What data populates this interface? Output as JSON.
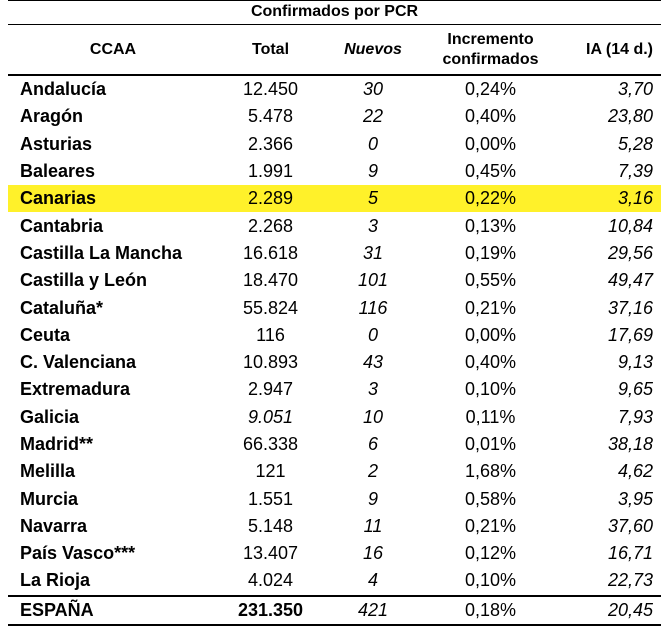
{
  "title": "Confirmados por PCR",
  "headers": {
    "ccaa": "CCAA",
    "total": "Total",
    "nuevos": "Nuevos",
    "incremento_line1": "Incremento",
    "incremento_line2": "confirmados",
    "ia": "IA (14 d.)"
  },
  "rows": [
    {
      "name": "Andalucía",
      "total": "12.450",
      "nuevos": "30",
      "incremento": "0,24%",
      "ia": "3,70"
    },
    {
      "name": "Aragón",
      "total": "5.478",
      "nuevos": "22",
      "incremento": "0,40%",
      "ia": "23,80"
    },
    {
      "name": "Asturias",
      "total": "2.366",
      "nuevos": "0",
      "incremento": "0,00%",
      "ia": "5,28"
    },
    {
      "name": "Baleares",
      "total": "1.991",
      "nuevos": "9",
      "incremento": "0,45%",
      "ia": "7,39"
    },
    {
      "name": "Canarias",
      "total": "2.289",
      "nuevos": "5",
      "incremento": "0,22%",
      "ia": "3,16"
    },
    {
      "name": "Cantabria",
      "total": "2.268",
      "nuevos": "3",
      "incremento": "0,13%",
      "ia": "10,84"
    },
    {
      "name": "Castilla La Mancha",
      "total": "16.618",
      "nuevos": "31",
      "incremento": "0,19%",
      "ia": "29,56"
    },
    {
      "name": "Castilla y León",
      "total": "18.470",
      "nuevos": "101",
      "incremento": "0,55%",
      "ia": "49,47"
    },
    {
      "name": "Cataluña*",
      "total": "55.824",
      "nuevos": "116",
      "incremento": "0,21%",
      "ia": "37,16"
    },
    {
      "name": "Ceuta",
      "total": "116",
      "nuevos": "0",
      "incremento": "0,00%",
      "ia": "17,69"
    },
    {
      "name": "C. Valenciana",
      "total": "10.893",
      "nuevos": "43",
      "incremento": "0,40%",
      "ia": "9,13"
    },
    {
      "name": "Extremadura",
      "total": "2.947",
      "nuevos": "3",
      "incremento": "0,10%",
      "ia": "9,65"
    },
    {
      "name": "Galicia",
      "total": "9.051",
      "nuevos": "10",
      "incremento": "0,11%",
      "ia": "7,93"
    },
    {
      "name": "Madrid**",
      "total": "66.338",
      "nuevos": "6",
      "incremento": "0,01%",
      "ia": "38,18"
    },
    {
      "name": "Melilla",
      "total": "121",
      "nuevos": "2",
      "incremento": "1,68%",
      "ia": "4,62"
    },
    {
      "name": "Murcia",
      "total": "1.551",
      "nuevos": "9",
      "incremento": "0,58%",
      "ia": "3,95"
    },
    {
      "name": "Navarra",
      "total": "5.148",
      "nuevos": "11",
      "incremento": "0,21%",
      "ia": "37,60"
    },
    {
      "name": "País Vasco***",
      "total": "13.407",
      "nuevos": "16",
      "incremento": "0,12%",
      "ia": "16,71"
    },
    {
      "name": "La Rioja",
      "total": "4.024",
      "nuevos": "4",
      "incremento": "0,10%",
      "ia": "22,73"
    }
  ],
  "total_row": {
    "name": "ESPAÑA",
    "total": "231.350",
    "nuevos": "421",
    "incremento": "0,18%",
    "ia": "20,45"
  },
  "highlight_color": "#fff12a"
}
